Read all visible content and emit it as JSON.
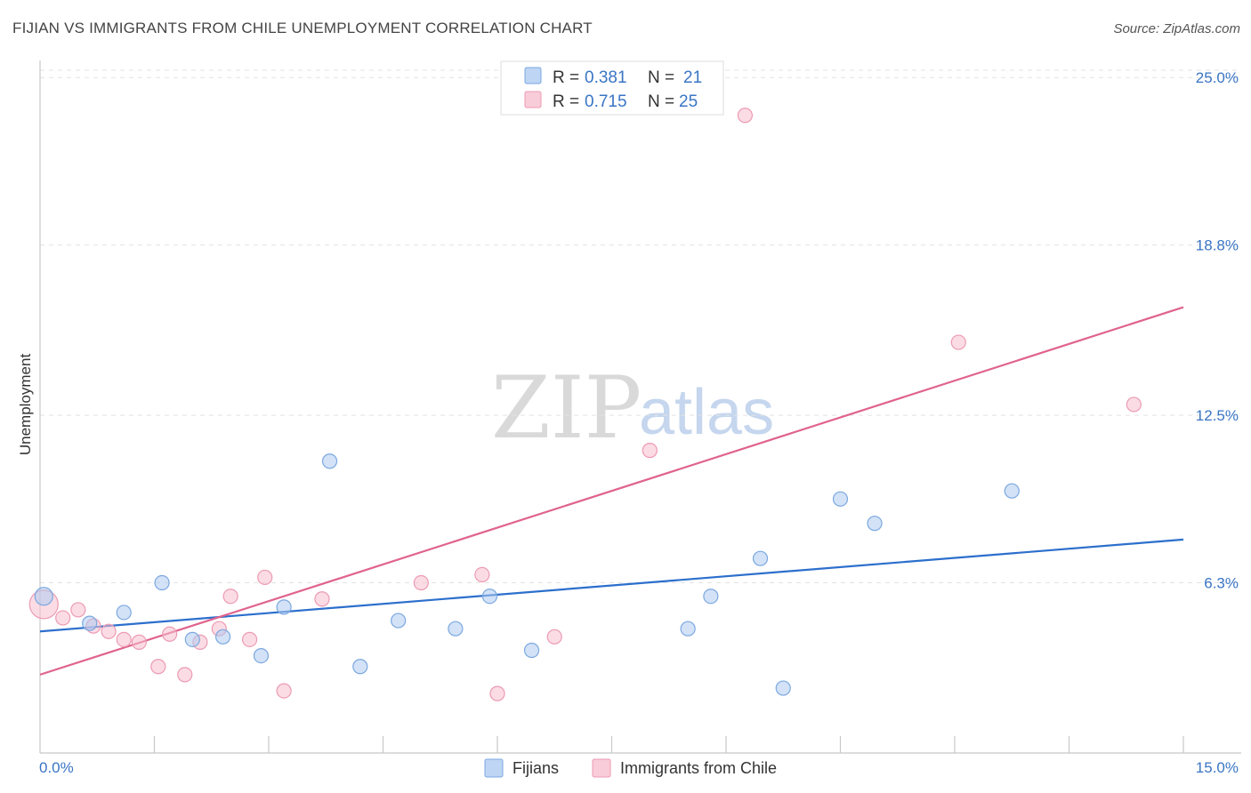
{
  "header": {
    "title": "FIJIAN VS IMMIGRANTS FROM CHILE UNEMPLOYMENT CORRELATION CHART",
    "source": "Source: ZipAtlas.com"
  },
  "watermark": {
    "zip": "ZIP",
    "atlas": "atlas"
  },
  "legend": {
    "rows": [
      {
        "r_label": "R = ",
        "r_value": "0.381",
        "n_label": "N = ",
        "n_value": "21",
        "color": "#aecbf1"
      },
      {
        "r_label": "R = ",
        "r_value": "0.715",
        "n_label": "N = ",
        "n_value": "25",
        "color": "#f7bfcf"
      }
    ]
  },
  "bottom_legend": {
    "items": [
      {
        "label": "Fijians",
        "color": "#aecbf1"
      },
      {
        "label": "Immigrants from Chile",
        "color": "#f7bfcf"
      }
    ]
  },
  "chart_data": {
    "type": "scatter",
    "title": "FIJIAN VS IMMIGRANTS FROM CHILE UNEMPLOYMENT CORRELATION CHART",
    "xlabel": "",
    "ylabel": "Unemployment",
    "xlim": [
      0,
      15
    ],
    "ylim": [
      0,
      25.5
    ],
    "x_tick_labels": [
      "0.0%",
      "15.0%"
    ],
    "y_ticks": [
      6.3,
      12.5,
      18.8,
      25.0
    ],
    "y_tick_labels": [
      "6.3%",
      "12.5%",
      "18.8%",
      "25.0%"
    ],
    "grid": true,
    "series": [
      {
        "name": "Fijians",
        "color": "#aecbf1",
        "stroke": "#7ba8e0",
        "line_color": "#2c6fcc",
        "trend": {
          "x": [
            0,
            15
          ],
          "y": [
            4.5,
            7.9
          ]
        },
        "points": [
          {
            "x": 0.05,
            "y": 5.8,
            "r": 10
          },
          {
            "x": 0.65,
            "y": 4.8
          },
          {
            "x": 1.1,
            "y": 5.2
          },
          {
            "x": 1.6,
            "y": 6.3
          },
          {
            "x": 2.0,
            "y": 4.2
          },
          {
            "x": 2.4,
            "y": 4.3
          },
          {
            "x": 2.9,
            "y": 3.6
          },
          {
            "x": 3.2,
            "y": 5.4
          },
          {
            "x": 3.8,
            "y": 10.8
          },
          {
            "x": 4.2,
            "y": 3.2
          },
          {
            "x": 4.7,
            "y": 4.9
          },
          {
            "x": 5.45,
            "y": 4.6
          },
          {
            "x": 5.9,
            "y": 5.8
          },
          {
            "x": 6.45,
            "y": 3.8
          },
          {
            "x": 8.5,
            "y": 4.6
          },
          {
            "x": 8.8,
            "y": 5.8
          },
          {
            "x": 9.45,
            "y": 7.2
          },
          {
            "x": 9.75,
            "y": 2.4
          },
          {
            "x": 10.5,
            "y": 9.4
          },
          {
            "x": 10.95,
            "y": 8.5
          },
          {
            "x": 12.75,
            "y": 9.7
          }
        ]
      },
      {
        "name": "Immigrants from Chile",
        "color": "#f7bfcf",
        "stroke": "#ec9ab2",
        "line_color": "#e0638e",
        "trend": {
          "x": [
            0,
            15
          ],
          "y": [
            2.9,
            16.5
          ]
        },
        "points": [
          {
            "x": 0.05,
            "y": 5.5,
            "r": 16
          },
          {
            "x": 0.3,
            "y": 5.0
          },
          {
            "x": 0.5,
            "y": 5.3
          },
          {
            "x": 0.7,
            "y": 4.7
          },
          {
            "x": 0.9,
            "y": 4.5
          },
          {
            "x": 1.1,
            "y": 4.2
          },
          {
            "x": 1.3,
            "y": 4.1
          },
          {
            "x": 1.55,
            "y": 3.2
          },
          {
            "x": 1.7,
            "y": 4.4
          },
          {
            "x": 1.9,
            "y": 2.9
          },
          {
            "x": 2.1,
            "y": 4.1
          },
          {
            "x": 2.35,
            "y": 4.6
          },
          {
            "x": 2.5,
            "y": 5.8
          },
          {
            "x": 2.75,
            "y": 4.2
          },
          {
            "x": 2.95,
            "y": 6.5
          },
          {
            "x": 3.2,
            "y": 2.3
          },
          {
            "x": 3.7,
            "y": 5.7
          },
          {
            "x": 5.0,
            "y": 6.3
          },
          {
            "x": 5.8,
            "y": 6.6
          },
          {
            "x": 6.0,
            "y": 2.2
          },
          {
            "x": 6.75,
            "y": 4.3
          },
          {
            "x": 8.0,
            "y": 11.2
          },
          {
            "x": 9.25,
            "y": 23.6
          },
          {
            "x": 12.05,
            "y": 15.2
          },
          {
            "x": 14.35,
            "y": 12.9
          }
        ]
      }
    ]
  }
}
